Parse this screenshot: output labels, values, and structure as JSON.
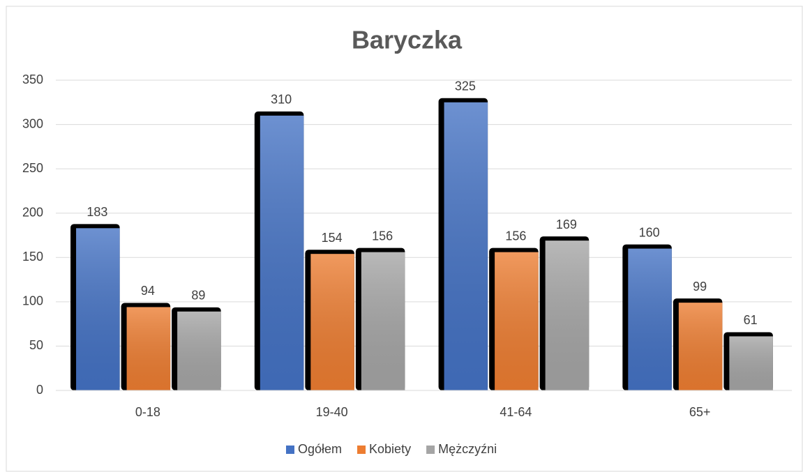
{
  "chart_data": {
    "type": "bar",
    "title": "Baryczka",
    "categories": [
      "0-18",
      "19-40",
      "41-64",
      "65+"
    ],
    "series": [
      {
        "name": "Ogółem",
        "color": "#4472c4",
        "values": [
          183,
          310,
          325,
          160
        ]
      },
      {
        "name": "Kobiety",
        "color": "#ed7d31",
        "values": [
          94,
          154,
          156,
          99
        ]
      },
      {
        "name": "Mężczyźni",
        "color": "#a5a5a5",
        "values": [
          89,
          156,
          169,
          61
        ]
      }
    ],
    "ylim": [
      0,
      350
    ],
    "yticks": [
      0,
      50,
      100,
      150,
      200,
      250,
      300,
      350
    ],
    "grid": true,
    "legend": "bottom"
  }
}
